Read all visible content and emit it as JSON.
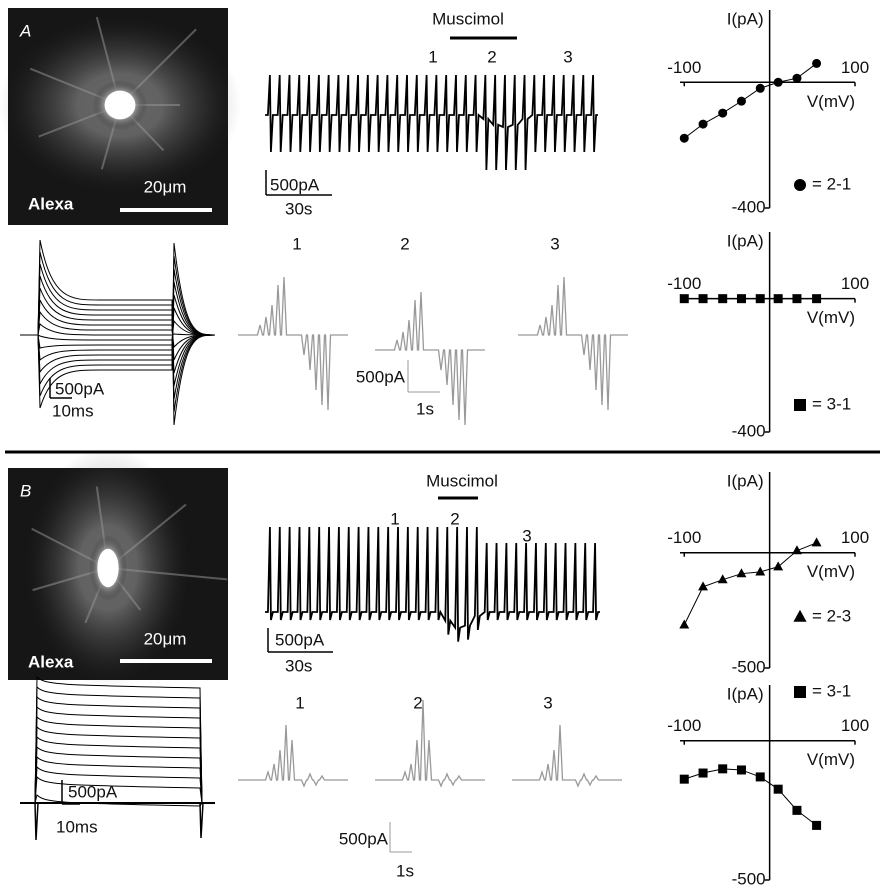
{
  "panels": [
    {
      "label": "A",
      "image": {
        "stain": "Alexa",
        "scale": "20μm"
      },
      "trace": {
        "drug": "Muscimol",
        "epochs": [
          "1",
          "2",
          "3"
        ],
        "scale_current": "500pA",
        "scale_time": "30s"
      },
      "step_scale": {
        "current": "500pA",
        "time": "10ms"
      },
      "responses": {
        "epochs": [
          "1",
          "2",
          "3"
        ],
        "scale_current": "500pA",
        "scale_time": "1s"
      },
      "iv_plots": [
        {
          "type": "scatter",
          "xlabel": "V(mV)",
          "ylabel": "I(pA)",
          "marker": "circle",
          "legend": "= 2-1",
          "x": [
            -100,
            -78,
            -55,
            -33,
            -11,
            10,
            32,
            55
          ],
          "y": [
            -178,
            -133,
            -98,
            -60,
            -19,
            0,
            13,
            60
          ],
          "xlim": [
            -105,
            100
          ],
          "ylim": [
            -400,
            230
          ],
          "xticks": [
            -100,
            100
          ],
          "yticks": [
            -400
          ]
        },
        {
          "type": "scatter",
          "xlabel": "V(mV)",
          "ylabel": "I(pA)",
          "marker": "square",
          "legend": "= 3-1",
          "x": [
            -100,
            -78,
            -55,
            -33,
            -11,
            10,
            32,
            55
          ],
          "y": [
            0,
            0,
            0,
            0,
            0,
            0,
            0,
            0
          ],
          "xlim": [
            -105,
            100
          ],
          "ylim": [
            -400,
            200
          ],
          "xticks": [
            -100,
            100
          ],
          "yticks": [
            -400
          ]
        }
      ]
    },
    {
      "label": "B",
      "image": {
        "stain": "Alexa",
        "scale": "20μm"
      },
      "trace": {
        "drug": "Muscimol",
        "epochs": [
          "1",
          "2",
          "3"
        ],
        "scale_current": "500pA",
        "scale_time": "30s"
      },
      "step_scale": {
        "current": "500pA",
        "time": "10ms"
      },
      "responses": {
        "epochs": [
          "1",
          "2",
          "3"
        ],
        "scale_current": "500pA",
        "scale_time": "1s"
      },
      "iv_plots": [
        {
          "type": "scatter",
          "xlabel": "V(mV)",
          "ylabel": "I(pA)",
          "marker": "triangle",
          "legend": "= 2-3",
          "x": [
            -100,
            -78,
            -55,
            -33,
            -11,
            10,
            32,
            55
          ],
          "y": [
            -313,
            -148,
            -117,
            -91,
            -83,
            -61,
            9,
            43
          ],
          "xlim": [
            -105,
            100
          ],
          "ylim": [
            -500,
            350
          ],
          "xticks": [
            -100,
            100
          ],
          "yticks": [
            -500
          ]
        },
        {
          "type": "scatter",
          "xlabel": "V(mV)",
          "ylabel": "I(pA)",
          "marker": "square",
          "legend": "= 3-1",
          "x": [
            -100,
            -78,
            -55,
            -33,
            -11,
            10,
            32,
            55
          ],
          "y": [
            -138,
            -116,
            -101,
            -105,
            -130,
            -174,
            -250,
            -304
          ],
          "xlim": [
            -105,
            100
          ],
          "ylim": [
            -500,
            200
          ],
          "xticks": [
            -100,
            100
          ],
          "yticks": [
            -500
          ]
        }
      ]
    }
  ]
}
